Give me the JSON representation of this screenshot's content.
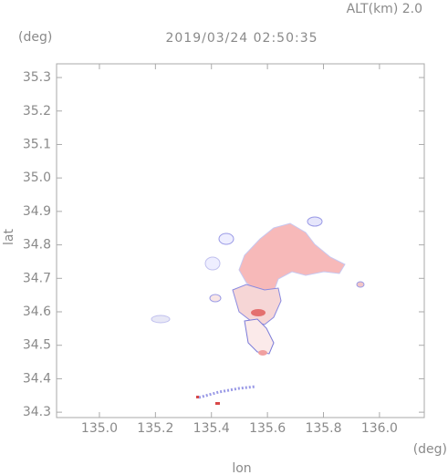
{
  "chart_data": {
    "type": "map",
    "title": "2019/03/24 02:50:35",
    "subtitle": "ALT(km) 2.0",
    "x_label": "lon",
    "y_label": "lat",
    "x_unit": "(deg)",
    "y_unit": "(deg)",
    "xlim": [
      134.847,
      136.16
    ],
    "ylim": [
      34.284,
      35.341
    ],
    "xticks": [
      {
        "value": 135.0,
        "label": "135.0"
      },
      135.2,
      135.4,
      135.6,
      135.8,
      {
        "value": 136.0,
        "label": "136.0"
      }
    ],
    "yticks": [
      34.3,
      34.4,
      34.5,
      34.6,
      34.7,
      34.8,
      34.9,
      {
        "value": 35.0,
        "label": "35.0"
      },
      35.1,
      35.2,
      35.3
    ]
  }
}
